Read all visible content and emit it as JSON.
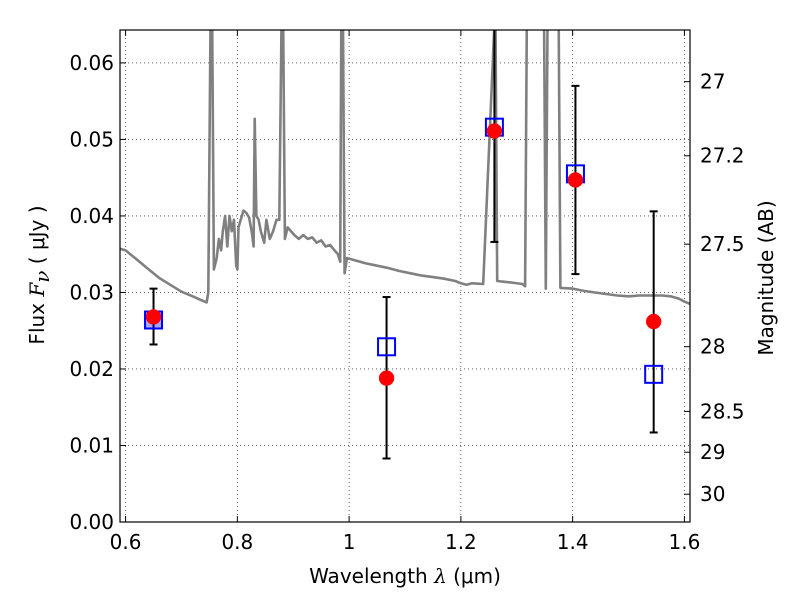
{
  "chart_data": {
    "type": "scatter",
    "x_label": {
      "prefix": "Wavelength ",
      "symbol": "λ",
      "units": " (μm)"
    },
    "y_label": {
      "prefix": "Flux ",
      "symbol": "F",
      "subscript": "ν",
      "units": " ( μJy )"
    },
    "y2_label": "Magnitude (AB)",
    "xlim": [
      0.59,
      1.61
    ],
    "ylim": [
      0.0,
      0.0643
    ],
    "x_ticks": [
      {
        "value": 0.6,
        "label": "0.6"
      },
      {
        "value": 0.8,
        "label": "0.8"
      },
      {
        "value": 1.0,
        "label": "1"
      },
      {
        "value": 1.2,
        "label": "1.2"
      },
      {
        "value": 1.4,
        "label": "1.4"
      },
      {
        "value": 1.6,
        "label": "1.6"
      }
    ],
    "y_ticks": [
      {
        "value": 0.0,
        "label": "0.00"
      },
      {
        "value": 0.01,
        "label": "0.01"
      },
      {
        "value": 0.02,
        "label": "0.02"
      },
      {
        "value": 0.03,
        "label": "0.03"
      },
      {
        "value": 0.04,
        "label": "0.04"
      },
      {
        "value": 0.05,
        "label": "0.05"
      },
      {
        "value": 0.06,
        "label": "0.06"
      }
    ],
    "y2_ticks": [
      {
        "value": 27.0,
        "label": "27"
      },
      {
        "value": 27.2,
        "label": "27.2"
      },
      {
        "value": 27.5,
        "label": "27.5"
      },
      {
        "value": 28.0,
        "label": "28"
      },
      {
        "value": 28.5,
        "label": "28.5"
      },
      {
        "value": 29.0,
        "label": "29"
      },
      {
        "value": 30.0,
        "label": "30"
      }
    ],
    "grid": true,
    "grid_style": "dotted",
    "observed": {
      "marker": "circle",
      "color": "#ff0000",
      "points": [
        {
          "x": 0.65,
          "y": 0.0268,
          "yerr_low": 0.0232,
          "yerr_high": 0.0305
        },
        {
          "x": 1.067,
          "y": 0.0188,
          "yerr_low": 0.0083,
          "yerr_high": 0.0294
        },
        {
          "x": 1.26,
          "y": 0.0511,
          "yerr_low": 0.0366,
          "yerr_high": 0.0655
        },
        {
          "x": 1.405,
          "y": 0.0447,
          "yerr_low": 0.0324,
          "yerr_high": 0.057
        },
        {
          "x": 1.545,
          "y": 0.0262,
          "yerr_low": 0.0117,
          "yerr_high": 0.0406
        }
      ]
    },
    "model_photometry": {
      "marker": "open-square",
      "color": "#0000ff",
      "points": [
        {
          "x": 0.65,
          "y": 0.0264
        },
        {
          "x": 1.067,
          "y": 0.0229
        },
        {
          "x": 1.26,
          "y": 0.0516
        },
        {
          "x": 1.405,
          "y": 0.0455
        },
        {
          "x": 1.545,
          "y": 0.0193
        }
      ]
    },
    "model_spectrum": {
      "color": "#808080",
      "points": [
        [
          0.59,
          0.0357
        ],
        [
          0.6,
          0.0355
        ],
        [
          0.62,
          0.0343
        ],
        [
          0.64,
          0.0331
        ],
        [
          0.66,
          0.0319
        ],
        [
          0.68,
          0.031
        ],
        [
          0.7,
          0.0301
        ],
        [
          0.72,
          0.0295
        ],
        [
          0.735,
          0.029
        ],
        [
          0.745,
          0.0287
        ],
        [
          0.748,
          0.03
        ],
        [
          0.752,
          0.065
        ],
        [
          0.755,
          0.065
        ],
        [
          0.758,
          0.033
        ],
        [
          0.763,
          0.0345
        ],
        [
          0.767,
          0.037
        ],
        [
          0.771,
          0.0355
        ],
        [
          0.774,
          0.038
        ],
        [
          0.778,
          0.04
        ],
        [
          0.782,
          0.036
        ],
        [
          0.786,
          0.04
        ],
        [
          0.79,
          0.038
        ],
        [
          0.794,
          0.0395
        ],
        [
          0.798,
          0.0335
        ],
        [
          0.8,
          0.033
        ],
        [
          0.802,
          0.0385
        ],
        [
          0.806,
          0.0395
        ],
        [
          0.811,
          0.0407
        ],
        [
          0.816,
          0.0404
        ],
        [
          0.821,
          0.0398
        ],
        [
          0.826,
          0.0378
        ],
        [
          0.829,
          0.036
        ],
        [
          0.831,
          0.0527
        ],
        [
          0.834,
          0.04
        ],
        [
          0.838,
          0.0395
        ],
        [
          0.842,
          0.038
        ],
        [
          0.848,
          0.0365
        ],
        [
          0.852,
          0.0395
        ],
        [
          0.858,
          0.037
        ],
        [
          0.864,
          0.038
        ],
        [
          0.87,
          0.0395
        ],
        [
          0.875,
          0.0395
        ],
        [
          0.879,
          0.065
        ],
        [
          0.882,
          0.065
        ],
        [
          0.885,
          0.037
        ],
        [
          0.89,
          0.0385
        ],
        [
          0.896,
          0.038
        ],
        [
          0.902,
          0.0375
        ],
        [
          0.91,
          0.037
        ],
        [
          0.918,
          0.0375
        ],
        [
          0.926,
          0.037
        ],
        [
          0.934,
          0.0372
        ],
        [
          0.942,
          0.0365
        ],
        [
          0.95,
          0.0368
        ],
        [
          0.958,
          0.036
        ],
        [
          0.966,
          0.0362
        ],
        [
          0.974,
          0.0355
        ],
        [
          0.98,
          0.035
        ],
        [
          0.984,
          0.034
        ],
        [
          0.986,
          0.065
        ],
        [
          0.989,
          0.065
        ],
        [
          0.992,
          0.0325
        ],
        [
          0.996,
          0.0345
        ],
        [
          1.01,
          0.0342
        ],
        [
          1.03,
          0.0338
        ],
        [
          1.05,
          0.0335
        ],
        [
          1.07,
          0.0332
        ],
        [
          1.09,
          0.0328
        ],
        [
          1.11,
          0.0325
        ],
        [
          1.13,
          0.0322
        ],
        [
          1.15,
          0.032
        ],
        [
          1.17,
          0.0318
        ],
        [
          1.19,
          0.0315
        ],
        [
          1.2,
          0.0312
        ],
        [
          1.21,
          0.031
        ],
        [
          1.22,
          0.0312
        ],
        [
          1.24,
          0.0311
        ],
        [
          1.26,
          0.065
        ],
        [
          1.262,
          0.065
        ],
        [
          1.265,
          0.0315
        ],
        [
          1.29,
          0.0313
        ],
        [
          1.31,
          0.0311
        ],
        [
          1.315,
          0.0308
        ],
        [
          1.318,
          0.065
        ],
        [
          1.335,
          0.065
        ],
        [
          1.338,
          0.065
        ],
        [
          1.345,
          0.065
        ],
        [
          1.349,
          0.065
        ],
        [
          1.352,
          0.0305
        ],
        [
          1.355,
          0.065
        ],
        [
          1.375,
          0.065
        ],
        [
          1.378,
          0.0306
        ],
        [
          1.4,
          0.0305
        ],
        [
          1.42,
          0.0302
        ],
        [
          1.44,
          0.03
        ],
        [
          1.46,
          0.0298
        ],
        [
          1.48,
          0.0296
        ],
        [
          1.5,
          0.0295
        ],
        [
          1.52,
          0.0296
        ],
        [
          1.54,
          0.0296
        ],
        [
          1.56,
          0.0296
        ],
        [
          1.575,
          0.0295
        ],
        [
          1.59,
          0.0292
        ],
        [
          1.6,
          0.0288
        ],
        [
          1.61,
          0.0285
        ]
      ]
    }
  }
}
